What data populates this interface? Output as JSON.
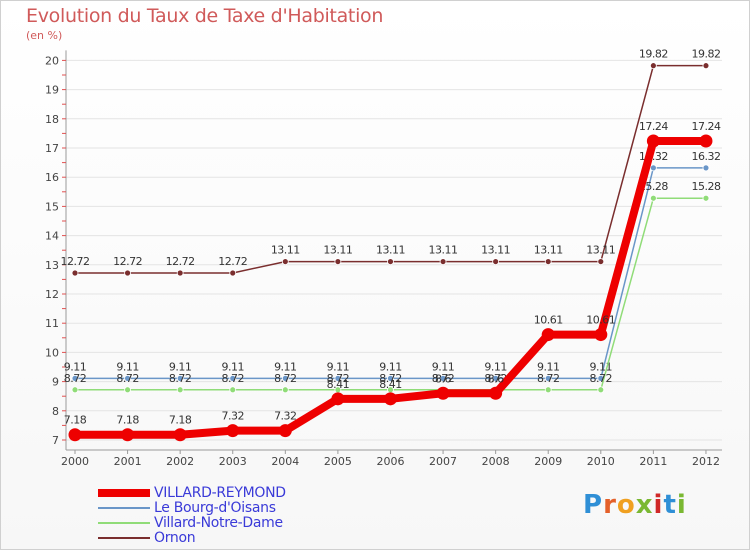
{
  "chart_data": {
    "type": "line",
    "title": "Evolution du Taux de Taxe d'Habitation",
    "subtitle": "(en %)",
    "xlabel": "",
    "ylabel": "(en %)",
    "ylim": [
      7,
      20
    ],
    "yticks": [
      "7",
      "8",
      "9",
      "10",
      "11",
      "12",
      "13",
      "14",
      "15",
      "16",
      "17",
      "18",
      "19",
      "20"
    ],
    "categories": [
      "2000",
      "2001",
      "2002",
      "2003",
      "2004",
      "2005",
      "2006",
      "2007",
      "2008",
      "2009",
      "2010",
      "2011",
      "2012"
    ],
    "legend_position": "bottom-left",
    "series": [
      {
        "name": "Ornon",
        "color": "#7a2e2e",
        "values": [
          12.72,
          12.72,
          12.72,
          12.72,
          13.11,
          13.11,
          13.11,
          13.11,
          13.11,
          13.11,
          13.11,
          19.82,
          19.82
        ],
        "labels": [
          "12.72",
          "12.72",
          "12.72",
          "12.72",
          "13.11",
          "13.11",
          "13.11",
          "13.11",
          "13.11",
          "13.11",
          "13.11",
          "19.82",
          "19.82"
        ]
      },
      {
        "name": "Le Bourg-d'Oisans",
        "color": "#6a96c8",
        "values": [
          9.11,
          9.11,
          9.11,
          9.11,
          9.11,
          9.11,
          9.11,
          9.11,
          9.11,
          9.11,
          9.11,
          16.32,
          16.32
        ],
        "labels": [
          "9.11",
          "9.11",
          "9.11",
          "9.11",
          "9.11",
          "9.11",
          "9.11",
          "9.11",
          "9.11",
          "9.11",
          "9.11",
          "16.32",
          "16.32"
        ]
      },
      {
        "name": "Villard-Notre-Dame",
        "color": "#90dc78",
        "values": [
          8.72,
          8.72,
          8.72,
          8.72,
          8.72,
          8.72,
          8.72,
          8.72,
          8.72,
          8.72,
          8.72,
          15.28,
          15.28
        ],
        "labels": [
          "8.72",
          "8.72",
          "8.72",
          "8.72",
          "8.72",
          "8.72",
          "8.72",
          "8.72",
          "8.72",
          "8.72",
          "8.72",
          "15.28",
          "15.28"
        ]
      },
      {
        "name": "VILLARD-REYMOND",
        "color": "#ee0000",
        "values": [
          7.18,
          7.18,
          7.18,
          7.32,
          7.32,
          8.41,
          8.41,
          8.6,
          8.6,
          10.61,
          10.61,
          17.24,
          17.24
        ],
        "labels": [
          "7.18",
          "7.18",
          "7.18",
          "7.32",
          "7.32",
          "8.41",
          "8.41",
          "8.6",
          "8.6",
          "10.61",
          "10.61",
          "17.24",
          "17.24"
        ]
      }
    ]
  },
  "legend": {
    "items": [
      {
        "label": "VILLARD-REYMOND",
        "color": "#ee0000"
      },
      {
        "label": "Le Bourg-d'Oisans",
        "color": "#6a96c8"
      },
      {
        "label": "Villard-Notre-Dame",
        "color": "#90dc78"
      },
      {
        "label": "Ornon",
        "color": "#7a2e2e"
      }
    ]
  },
  "branding": {
    "logo_text": "Proxiti",
    "logo_colors": [
      "#2f8fd6",
      "#e4602a",
      "#f0a020",
      "#7ab832",
      "#d02828",
      "#2f8fd6",
      "#7ab832"
    ]
  }
}
